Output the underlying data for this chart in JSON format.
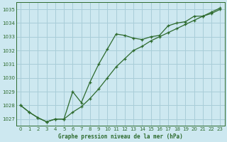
{
  "title": "Graphe pression niveau de la mer (hPa)",
  "background_color": "#cde8f0",
  "grid_color": "#a8cdd8",
  "line_color": "#2d6a2d",
  "xlim": [
    -0.5,
    23.5
  ],
  "ylim": [
    1026.5,
    1035.5
  ],
  "yticks": [
    1027,
    1028,
    1029,
    1030,
    1031,
    1032,
    1033,
    1034,
    1035
  ],
  "xticks": [
    0,
    1,
    2,
    3,
    4,
    5,
    6,
    7,
    8,
    9,
    10,
    11,
    12,
    13,
    14,
    15,
    16,
    17,
    18,
    19,
    20,
    21,
    22,
    23
  ],
  "series1_x": [
    0,
    1,
    2,
    3,
    4,
    5,
    6,
    7,
    8,
    9,
    10,
    11,
    12,
    13,
    14,
    15,
    16,
    17,
    18,
    19,
    20,
    21,
    22,
    23
  ],
  "series1_y": [
    1028.0,
    1027.5,
    1027.1,
    1026.8,
    1027.0,
    1027.0,
    1029.0,
    1028.2,
    1029.7,
    1031.0,
    1032.1,
    1033.2,
    1033.1,
    1032.9,
    1032.8,
    1033.0,
    1033.1,
    1033.8,
    1034.0,
    1034.1,
    1034.5,
    1034.5,
    1034.8,
    1035.1
  ],
  "series2_x": [
    0,
    1,
    2,
    3,
    4,
    5,
    6,
    7,
    8,
    9,
    10,
    11,
    12,
    13,
    14,
    15,
    16,
    17,
    18,
    19,
    20,
    21,
    22,
    23
  ],
  "series2_y": [
    1028.0,
    1027.5,
    1027.1,
    1026.8,
    1027.0,
    1027.0,
    1027.5,
    1027.9,
    1028.5,
    1029.2,
    1030.0,
    1030.8,
    1031.4,
    1032.0,
    1032.3,
    1032.7,
    1033.0,
    1033.3,
    1033.6,
    1033.9,
    1034.2,
    1034.5,
    1034.7,
    1035.0
  ]
}
